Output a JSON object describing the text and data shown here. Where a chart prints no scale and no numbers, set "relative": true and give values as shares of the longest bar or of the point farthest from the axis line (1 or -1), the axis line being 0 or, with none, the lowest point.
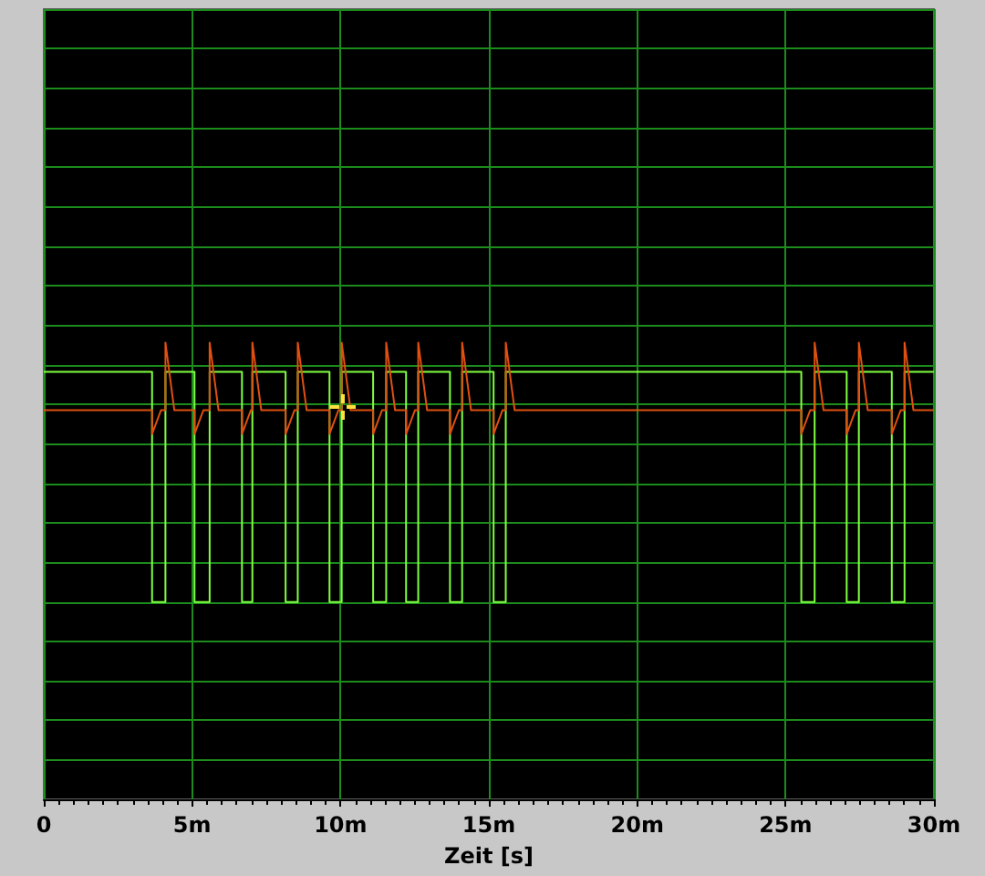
{
  "chart_data": {
    "type": "line",
    "xlabel": "Zeit [s]",
    "relative": true,
    "grid": true,
    "marker": "none",
    "line_style": "solid",
    "tick_labels": "x",
    "xlim": [
      0,
      30
    ],
    "xticks": [
      0,
      {
        "value": 5,
        "label": "5m"
      },
      {
        "value": 10,
        "label": "10m"
      },
      {
        "value": 15,
        "label": "15m"
      },
      {
        "value": 20,
        "label": "20m"
      },
      {
        "value": 25,
        "label": "25m"
      },
      {
        "value": 30,
        "label": "30m"
      }
    ],
    "series": [
      {
        "color": "#80ff40",
        "x": [
          0,
          3.65,
          3.65,
          4.1,
          4.1,
          5.08,
          5.08,
          5.59,
          5.59,
          6.68,
          6.68,
          7.03,
          7.03,
          8.15,
          8.15,
          8.56,
          8.56,
          9.63,
          9.63,
          10.04,
          10.04,
          11.1,
          11.1,
          11.54,
          11.54,
          12.21,
          12.21,
          12.62,
          12.62,
          13.69,
          13.69,
          14.1,
          14.1,
          15.16,
          15.16,
          15.57,
          15.57,
          25.53,
          25.53,
          25.98,
          25.98,
          27.06,
          27.06,
          27.47,
          27.47,
          28.58,
          28.58,
          29.01,
          29.01,
          30
        ],
        "values": [
          0.936,
          0.936,
          0.432,
          0.432,
          0.936,
          0.936,
          0.432,
          0.432,
          0.936,
          0.936,
          0.432,
          0.432,
          0.936,
          0.936,
          0.432,
          0.432,
          0.936,
          0.936,
          0.432,
          0.432,
          0.936,
          0.936,
          0.432,
          0.432,
          0.936,
          0.936,
          0.432,
          0.432,
          0.936,
          0.936,
          0.432,
          0.432,
          0.936,
          0.936,
          0.432,
          0.432,
          0.936,
          0.936,
          0.432,
          0.432,
          0.936,
          0.936,
          0.432,
          0.432,
          0.936,
          0.936,
          0.432,
          0.432,
          0.936,
          0.936
        ]
      },
      {
        "color": "#e05010",
        "x": [
          0,
          3.65,
          3.65,
          3.95,
          4.1,
          4.1,
          4.4,
          5.08,
          5.08,
          5.38,
          5.59,
          5.59,
          5.89,
          6.68,
          6.68,
          6.98,
          7.03,
          7.03,
          7.33,
          8.15,
          8.15,
          8.45,
          8.56,
          8.56,
          8.86,
          9.63,
          9.63,
          9.93,
          10.04,
          10.04,
          10.34,
          11.1,
          11.1,
          11.4,
          11.54,
          11.54,
          11.84,
          12.21,
          12.21,
          12.51,
          12.62,
          12.62,
          12.92,
          13.69,
          13.69,
          13.99,
          14.1,
          14.1,
          14.4,
          15.16,
          15.16,
          15.46,
          15.57,
          15.57,
          15.87,
          25.53,
          25.53,
          25.83,
          25.98,
          25.98,
          26.28,
          27.06,
          27.06,
          27.36,
          27.47,
          27.47,
          27.77,
          28.58,
          28.58,
          28.88,
          29.01,
          29.01,
          29.31,
          30
        ],
        "values": [
          0.852,
          0.852,
          0.8,
          0.852,
          0.852,
          1,
          0.852,
          0.852,
          0.8,
          0.852,
          0.852,
          1,
          0.852,
          0.852,
          0.8,
          0.852,
          0.852,
          1,
          0.852,
          0.852,
          0.8,
          0.852,
          0.852,
          1,
          0.852,
          0.852,
          0.8,
          0.852,
          0.852,
          1,
          0.852,
          0.852,
          0.8,
          0.852,
          0.852,
          1,
          0.852,
          0.852,
          0.8,
          0.852,
          0.852,
          1,
          0.852,
          0.852,
          0.8,
          0.852,
          0.852,
          1,
          0.852,
          0.852,
          0.8,
          0.852,
          0.852,
          1,
          0.852,
          0.852,
          0.8,
          0.852,
          0.852,
          1,
          0.852,
          0.852,
          0.8,
          0.852,
          0.852,
          1,
          0.852,
          0.852,
          0.8,
          0.852,
          0.852,
          1,
          0.852,
          0.852
        ]
      }
    ]
  }
}
